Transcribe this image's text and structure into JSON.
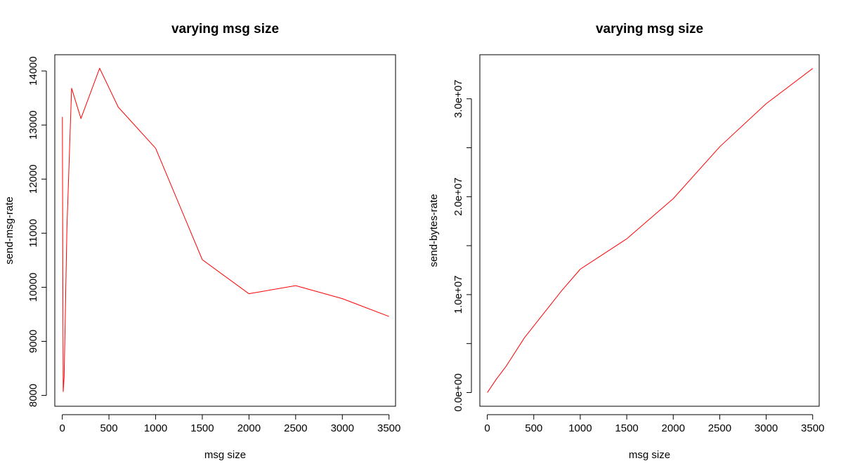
{
  "chart_data": [
    {
      "type": "line",
      "title": "varying msg size",
      "xlabel": "msg size",
      "ylabel": "send-msg-rate",
      "xlim": [
        -80,
        3570
      ],
      "ylim": [
        7800,
        14300
      ],
      "x_ticks": [
        0,
        500,
        1000,
        1500,
        2000,
        2500,
        3000,
        3500
      ],
      "x_tick_labels": [
        "0",
        "500",
        "1000",
        "1500",
        "2000",
        "2500",
        "3000",
        "3500"
      ],
      "y_ticks": [
        8000,
        9000,
        10000,
        11000,
        12000,
        13000,
        14000
      ],
      "y_tick_labels": [
        "8000",
        "9000",
        "10000",
        "11000",
        "12000",
        "13000",
        "14000"
      ],
      "grid": false,
      "series": [
        {
          "color": "#ff0000",
          "x": [
            1,
            10,
            20,
            50,
            100,
            200,
            400,
            600,
            1000,
            1500,
            2000,
            2500,
            3000,
            3500
          ],
          "y": [
            13150,
            8070,
            8350,
            11100,
            13680,
            13120,
            14050,
            13330,
            12570,
            10510,
            9880,
            10030,
            9790,
            9460
          ]
        }
      ]
    },
    {
      "type": "line",
      "title": "varying msg size",
      "xlabel": "msg size",
      "ylabel": "send-bytes-rate",
      "xlim": [
        -80,
        3570
      ],
      "ylim": [
        -1400000,
        34500000
      ],
      "x_ticks": [
        0,
        500,
        1000,
        1500,
        2000,
        2500,
        3000,
        3500
      ],
      "x_tick_labels": [
        "0",
        "500",
        "1000",
        "1500",
        "2000",
        "2500",
        "3000",
        "3500"
      ],
      "y_ticks": [
        0,
        5000000,
        10000000,
        15000000,
        20000000,
        25000000,
        30000000
      ],
      "y_tick_labels": [
        "0.0e+00",
        "",
        "1.0e+07",
        "",
        "2.0e+07",
        "",
        "3.0e+07"
      ],
      "grid": false,
      "series": [
        {
          "color": "#ff0000",
          "x": [
            1,
            50,
            100,
            200,
            400,
            600,
            800,
            1000,
            1500,
            2000,
            2500,
            3000,
            3500
          ],
          "y": [
            0,
            700000,
            1400000,
            2650000,
            5600000,
            8000000,
            10400000,
            12600000,
            15700000,
            19800000,
            25100000,
            29500000,
            33100000
          ]
        }
      ]
    }
  ]
}
